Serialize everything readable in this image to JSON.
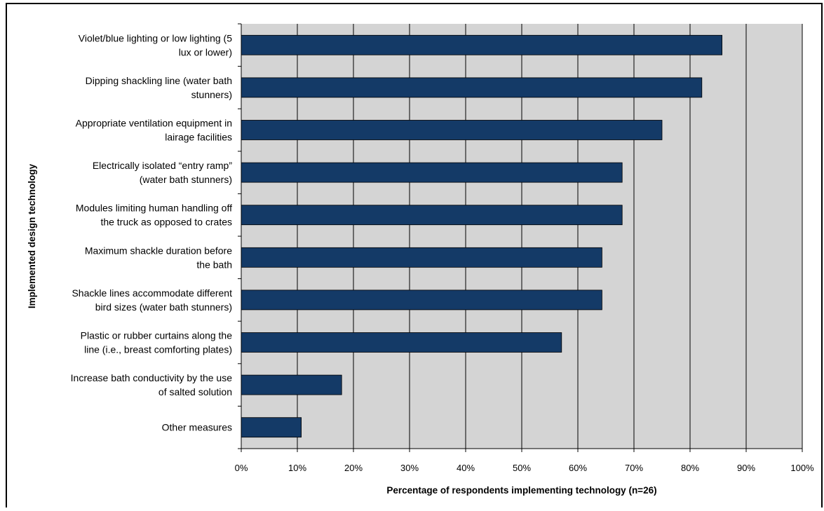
{
  "chart_data": {
    "type": "bar",
    "orientation": "horizontal",
    "title": "",
    "xlabel": "Percentage of respondents implementing technology (n=26)",
    "ylabel": "Implemented design technology",
    "xlim": [
      0,
      100
    ],
    "x_ticks": [
      "0%",
      "10%",
      "20%",
      "30%",
      "40%",
      "50%",
      "60%",
      "70%",
      "80%",
      "90%",
      "100%"
    ],
    "categories": [
      [
        "Violet/blue lighting or low lighting (5",
        "lux or lower)"
      ],
      [
        "Dipping shackling line (water bath",
        "stunners)"
      ],
      [
        "Appropriate ventilation equipment in",
        "lairage facilities"
      ],
      [
        "Electrically isolated “entry ramp”",
        "(water bath stunners)"
      ],
      [
        "Modules limiting human handling off",
        "the truck as opposed to crates"
      ],
      [
        "Maximum shackle duration before",
        "the bath"
      ],
      [
        "Shackle lines accommodate different",
        "bird sizes (water bath stunners)"
      ],
      [
        "Plastic or rubber curtains along the",
        "line (i.e., breast comforting plates)"
      ],
      [
        "Increase bath conductivity by the use",
        "of salted solution"
      ],
      [
        "Other measures"
      ]
    ],
    "values": [
      85.7,
      82.1,
      75.0,
      67.9,
      67.9,
      64.3,
      64.3,
      57.1,
      17.9,
      10.7
    ],
    "grid": true,
    "colors": {
      "bar": "#143a67",
      "plot_bg": "#d4d4d4",
      "grid": "#000000"
    }
  }
}
